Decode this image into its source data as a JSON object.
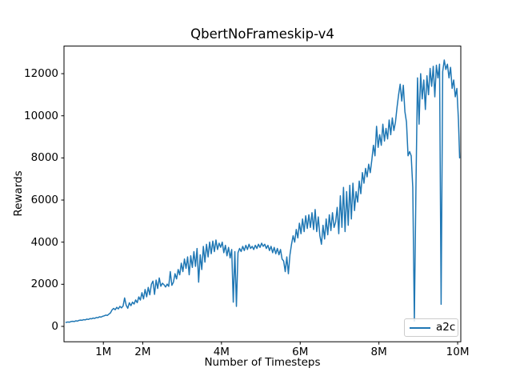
{
  "figure": {
    "background": "#ffffff"
  },
  "chart_data": {
    "type": "line",
    "title": "QbertNoFrameskip-v4",
    "xlabel": "Number of Timesteps",
    "ylabel": "Rewards",
    "grid": false,
    "legend_position": "lower right",
    "xlim_millions": [
      0,
      10.08
    ],
    "ylim": [
      -730,
      13310
    ],
    "xticks": [
      {
        "value": 1,
        "label": "1M"
      },
      {
        "value": 2,
        "label": "2M"
      },
      {
        "value": 4,
        "label": "4M"
      },
      {
        "value": 6,
        "label": "6M"
      },
      {
        "value": 8,
        "label": "8M"
      },
      {
        "value": 10,
        "label": "10M"
      }
    ],
    "yticks": [
      {
        "value": 0,
        "label": "0"
      },
      {
        "value": 2000,
        "label": "2000"
      },
      {
        "value": 4000,
        "label": "4000"
      },
      {
        "value": 6000,
        "label": "6000"
      },
      {
        "value": 8000,
        "label": "8000"
      },
      {
        "value": 10000,
        "label": "10000"
      },
      {
        "value": 12000,
        "label": "12000"
      }
    ],
    "series": [
      {
        "name": "a2c",
        "color": "#1f77b4",
        "points": [
          [
            0.05,
            190
          ],
          [
            0.1,
            210
          ],
          [
            0.14,
            200
          ],
          [
            0.18,
            230
          ],
          [
            0.22,
            240
          ],
          [
            0.26,
            230
          ],
          [
            0.3,
            265
          ],
          [
            0.34,
            250
          ],
          [
            0.38,
            285
          ],
          [
            0.42,
            300
          ],
          [
            0.46,
            290
          ],
          [
            0.5,
            320
          ],
          [
            0.54,
            310
          ],
          [
            0.58,
            345
          ],
          [
            0.62,
            330
          ],
          [
            0.66,
            370
          ],
          [
            0.7,
            360
          ],
          [
            0.74,
            395
          ],
          [
            0.78,
            380
          ],
          [
            0.82,
            420
          ],
          [
            0.86,
            410
          ],
          [
            0.9,
            455
          ],
          [
            0.94,
            440
          ],
          [
            0.98,
            480
          ],
          [
            1.02,
            500
          ],
          [
            1.06,
            535
          ],
          [
            1.1,
            520
          ],
          [
            1.14,
            580
          ],
          [
            1.18,
            640
          ],
          [
            1.22,
            780
          ],
          [
            1.26,
            855
          ],
          [
            1.3,
            790
          ],
          [
            1.34,
            905
          ],
          [
            1.38,
            830
          ],
          [
            1.42,
            950
          ],
          [
            1.46,
            880
          ],
          [
            1.5,
            965
          ],
          [
            1.54,
            1350
          ],
          [
            1.58,
            1000
          ],
          [
            1.62,
            860
          ],
          [
            1.66,
            1120
          ],
          [
            1.7,
            985
          ],
          [
            1.74,
            1150
          ],
          [
            1.78,
            1060
          ],
          [
            1.82,
            1255
          ],
          [
            1.86,
            1125
          ],
          [
            1.9,
            1400
          ],
          [
            1.94,
            1250
          ],
          [
            1.98,
            1600
          ],
          [
            2.02,
            1305
          ],
          [
            2.06,
            1750
          ],
          [
            2.1,
            1405
          ],
          [
            2.14,
            1850
          ],
          [
            2.18,
            1500
          ],
          [
            2.22,
            2000
          ],
          [
            2.26,
            2150
          ],
          [
            2.3,
            1520
          ],
          [
            2.34,
            2200
          ],
          [
            2.38,
            1800
          ],
          [
            2.42,
            2300
          ],
          [
            2.46,
            1905
          ],
          [
            2.5,
            2050
          ],
          [
            2.54,
            1980
          ],
          [
            2.58,
            1870
          ],
          [
            2.62,
            2005
          ],
          [
            2.66,
            1900
          ],
          [
            2.7,
            2600
          ],
          [
            2.74,
            1950
          ],
          [
            2.78,
            2100
          ],
          [
            2.82,
            2500
          ],
          [
            2.86,
            2255
          ],
          [
            2.9,
            2700
          ],
          [
            2.94,
            2450
          ],
          [
            2.98,
            3000
          ],
          [
            3.02,
            2600
          ],
          [
            3.06,
            3200
          ],
          [
            3.1,
            2755
          ],
          [
            3.14,
            3300
          ],
          [
            3.18,
            2450
          ],
          [
            3.22,
            3350
          ],
          [
            3.26,
            2800
          ],
          [
            3.3,
            3550
          ],
          [
            3.34,
            2850
          ],
          [
            3.38,
            3700
          ],
          [
            3.42,
            2100
          ],
          [
            3.46,
            3400
          ],
          [
            3.5,
            2700
          ],
          [
            3.54,
            3800
          ],
          [
            3.58,
            3050
          ],
          [
            3.62,
            3900
          ],
          [
            3.66,
            3300
          ],
          [
            3.7,
            4000
          ],
          [
            3.74,
            3450
          ],
          [
            3.78,
            4050
          ],
          [
            3.82,
            3550
          ],
          [
            3.86,
            4100
          ],
          [
            3.9,
            3650
          ],
          [
            3.94,
            3950
          ],
          [
            3.98,
            3755
          ],
          [
            4.02,
            4000
          ],
          [
            4.06,
            3500
          ],
          [
            4.1,
            3850
          ],
          [
            4.14,
            3350
          ],
          [
            4.18,
            3750
          ],
          [
            4.22,
            3250
          ],
          [
            4.26,
            3650
          ],
          [
            4.3,
            1150
          ],
          [
            4.34,
            3550
          ],
          [
            4.38,
            950
          ],
          [
            4.42,
            3500
          ],
          [
            4.46,
            3700
          ],
          [
            4.5,
            3555
          ],
          [
            4.54,
            3800
          ],
          [
            4.58,
            3600
          ],
          [
            4.62,
            3850
          ],
          [
            4.66,
            3650
          ],
          [
            4.7,
            3900
          ],
          [
            4.74,
            3700
          ],
          [
            4.78,
            3800
          ],
          [
            4.82,
            3650
          ],
          [
            4.86,
            3850
          ],
          [
            4.9,
            3700
          ],
          [
            4.94,
            3900
          ],
          [
            4.98,
            3750
          ],
          [
            5.02,
            3950
          ],
          [
            5.06,
            3800
          ],
          [
            5.1,
            3900
          ],
          [
            5.14,
            3700
          ],
          [
            5.18,
            3850
          ],
          [
            5.22,
            3600
          ],
          [
            5.26,
            3800
          ],
          [
            5.3,
            3500
          ],
          [
            5.34,
            3750
          ],
          [
            5.38,
            3450
          ],
          [
            5.42,
            3700
          ],
          [
            5.46,
            3400
          ],
          [
            5.5,
            3650
          ],
          [
            5.54,
            3200
          ],
          [
            5.58,
            3100
          ],
          [
            5.62,
            2600
          ],
          [
            5.66,
            3300
          ],
          [
            5.7,
            2500
          ],
          [
            5.74,
            3400
          ],
          [
            5.78,
            3900
          ],
          [
            5.82,
            4300
          ],
          [
            5.86,
            4000
          ],
          [
            5.9,
            4600
          ],
          [
            5.94,
            4200
          ],
          [
            5.98,
            4900
          ],
          [
            6.02,
            4400
          ],
          [
            6.06,
            5100
          ],
          [
            6.1,
            4500
          ],
          [
            6.14,
            5250
          ],
          [
            6.18,
            4650
          ],
          [
            6.22,
            5300
          ],
          [
            6.26,
            4700
          ],
          [
            6.3,
            5400
          ],
          [
            6.34,
            4600
          ],
          [
            6.38,
            5550
          ],
          [
            6.42,
            4500
          ],
          [
            6.46,
            5200
          ],
          [
            6.5,
            4300
          ],
          [
            6.54,
            3900
          ],
          [
            6.58,
            4800
          ],
          [
            6.62,
            4150
          ],
          [
            6.66,
            5100
          ],
          [
            6.7,
            4350
          ],
          [
            6.74,
            5300
          ],
          [
            6.78,
            4550
          ],
          [
            6.82,
            5400
          ],
          [
            6.86,
            4700
          ],
          [
            6.9,
            4950
          ],
          [
            6.94,
            5650
          ],
          [
            6.98,
            4400
          ],
          [
            7.02,
            6200
          ],
          [
            7.06,
            4700
          ],
          [
            7.1,
            6600
          ],
          [
            7.14,
            4500
          ],
          [
            7.18,
            6400
          ],
          [
            7.22,
            4800
          ],
          [
            7.26,
            6700
          ],
          [
            7.3,
            5100
          ],
          [
            7.34,
            6800
          ],
          [
            7.38,
            5500
          ],
          [
            7.42,
            6400
          ],
          [
            7.46,
            5900
          ],
          [
            7.5,
            6900
          ],
          [
            7.54,
            6300
          ],
          [
            7.58,
            7300
          ],
          [
            7.62,
            6800
          ],
          [
            7.66,
            7500
          ],
          [
            7.7,
            7100
          ],
          [
            7.74,
            7700
          ],
          [
            7.78,
            7300
          ],
          [
            7.82,
            7900
          ],
          [
            7.86,
            8600
          ],
          [
            7.9,
            8100
          ],
          [
            7.94,
            9500
          ],
          [
            7.98,
            8500
          ],
          [
            8.02,
            9100
          ],
          [
            8.06,
            8600
          ],
          [
            8.1,
            9600
          ],
          [
            8.14,
            8800
          ],
          [
            8.18,
            9400
          ],
          [
            8.22,
            8900
          ],
          [
            8.26,
            9800
          ],
          [
            8.3,
            9100
          ],
          [
            8.34,
            9900
          ],
          [
            8.38,
            9300
          ],
          [
            8.42,
            9700
          ],
          [
            8.46,
            10400
          ],
          [
            8.5,
            11000
          ],
          [
            8.54,
            11500
          ],
          [
            8.58,
            10700
          ],
          [
            8.62,
            11450
          ],
          [
            8.66,
            10200
          ],
          [
            8.7,
            9700
          ],
          [
            8.74,
            8100
          ],
          [
            8.78,
            8300
          ],
          [
            8.82,
            8100
          ],
          [
            8.86,
            6600
          ],
          [
            8.9,
            250
          ],
          [
            8.94,
            6500
          ],
          [
            8.98,
            11800
          ],
          [
            9.02,
            9600
          ],
          [
            9.06,
            12000
          ],
          [
            9.1,
            10800
          ],
          [
            9.14,
            11700
          ],
          [
            9.18,
            10300
          ],
          [
            9.22,
            11900
          ],
          [
            9.26,
            11000
          ],
          [
            9.3,
            12250
          ],
          [
            9.34,
            11400
          ],
          [
            9.38,
            12350
          ],
          [
            9.42,
            10900
          ],
          [
            9.46,
            12400
          ],
          [
            9.5,
            11800
          ],
          [
            9.54,
            12450
          ],
          [
            9.58,
            1050
          ],
          [
            9.62,
            12100
          ],
          [
            9.66,
            12650
          ],
          [
            9.7,
            12200
          ],
          [
            9.74,
            12450
          ],
          [
            9.78,
            11800
          ],
          [
            9.82,
            12300
          ],
          [
            9.86,
            11300
          ],
          [
            9.9,
            11700
          ],
          [
            9.94,
            10900
          ],
          [
            9.98,
            11300
          ],
          [
            10.02,
            9800
          ],
          [
            10.05,
            8000
          ]
        ]
      }
    ]
  },
  "legend": {
    "entries": [
      {
        "label": "a2c",
        "color": "#1f77b4"
      }
    ],
    "border_color": "#cccccc"
  }
}
